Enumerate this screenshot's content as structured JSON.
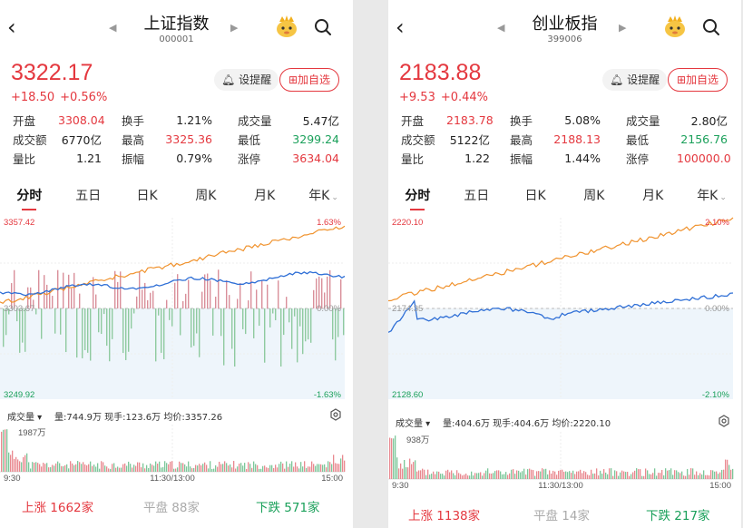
{
  "panels": [
    {
      "title": "上证指数",
      "code": "000001",
      "price": "3322.17",
      "change": "+18.50",
      "change_pct": "+0.56%",
      "remind_label": "设提醒",
      "add_label": "加自选",
      "stats": [
        [
          {
            "label": "开盘",
            "value": "3308.04",
            "color": "red"
          },
          {
            "label": "换手",
            "value": "1.21%",
            "color": "dark"
          },
          {
            "label": "成交量",
            "value": "5.47亿",
            "color": "dark"
          }
        ],
        [
          {
            "label": "成交额",
            "value": "6770亿",
            "color": "dark"
          },
          {
            "label": "最高",
            "value": "3325.36",
            "color": "red"
          },
          {
            "label": "最低",
            "value": "3299.24",
            "color": "green"
          }
        ],
        [
          {
            "label": "量比",
            "value": "1.21",
            "color": "dark"
          },
          {
            "label": "振幅",
            "value": "0.79%",
            "color": "dark"
          },
          {
            "label": "涨停",
            "value": "3634.04",
            "color": "red"
          }
        ]
      ],
      "tabs": [
        "分时",
        "五日",
        "日K",
        "周K",
        "月K",
        "年K"
      ],
      "chart": {
        "high_label": "3357.42",
        "low_label": "3249.92",
        "mid_label": "3303.67",
        "high_pct": "1.63%",
        "low_pct": "-1.63%",
        "zero_pct": "0.00%"
      },
      "volbar": {
        "selector": "成交量",
        "info": "量:744.9万  现手:123.6万  均价:3357.26"
      },
      "vol_max_label": "1987万",
      "time_labels": [
        "9:30",
        "11:30/13:00",
        "15:00"
      ],
      "breadth": {
        "up": "上涨  1662家",
        "flat": "平盘  88家",
        "down": "下跌  571家"
      }
    },
    {
      "title": "创业板指",
      "code": "399006",
      "price": "2183.88",
      "change": "+9.53",
      "change_pct": "+0.44%",
      "remind_label": "设提醒",
      "add_label": "加自选",
      "stats": [
        [
          {
            "label": "开盘",
            "value": "2183.78",
            "color": "red"
          },
          {
            "label": "换手",
            "value": "5.08%",
            "color": "dark"
          },
          {
            "label": "成交量",
            "value": "2.80亿",
            "color": "dark"
          }
        ],
        [
          {
            "label": "成交额",
            "value": "5122亿",
            "color": "dark"
          },
          {
            "label": "最高",
            "value": "2188.13",
            "color": "red"
          },
          {
            "label": "最低",
            "value": "2156.76",
            "color": "green"
          }
        ],
        [
          {
            "label": "量比",
            "value": "1.22",
            "color": "dark"
          },
          {
            "label": "振幅",
            "value": "1.44%",
            "color": "dark"
          },
          {
            "label": "涨停",
            "value": "100000.0",
            "color": "red"
          }
        ]
      ],
      "tabs": [
        "分时",
        "五日",
        "日K",
        "周K",
        "月K",
        "年K"
      ],
      "chart": {
        "high_label": "2220.10",
        "low_label": "2128.60",
        "mid_label": "2174.35",
        "high_pct": "2.10%",
        "low_pct": "-2.10%",
        "zero_pct": "0.00%"
      },
      "volbar": {
        "selector": "成交量",
        "info": "量:404.6万  现手:404.6万  均价:2220.10"
      },
      "vol_max_label": "938万",
      "time_labels": [
        "9:30",
        "11:30/13:00",
        "15:00"
      ],
      "breadth": {
        "up": "上涨  1138家",
        "flat": "平盘  14家",
        "down": "下跌  217家"
      }
    }
  ],
  "colors": {
    "up": "#e4383f",
    "down": "#1aa05a",
    "price_line": "#2f6fd6",
    "avg_line": "#f0922d"
  }
}
